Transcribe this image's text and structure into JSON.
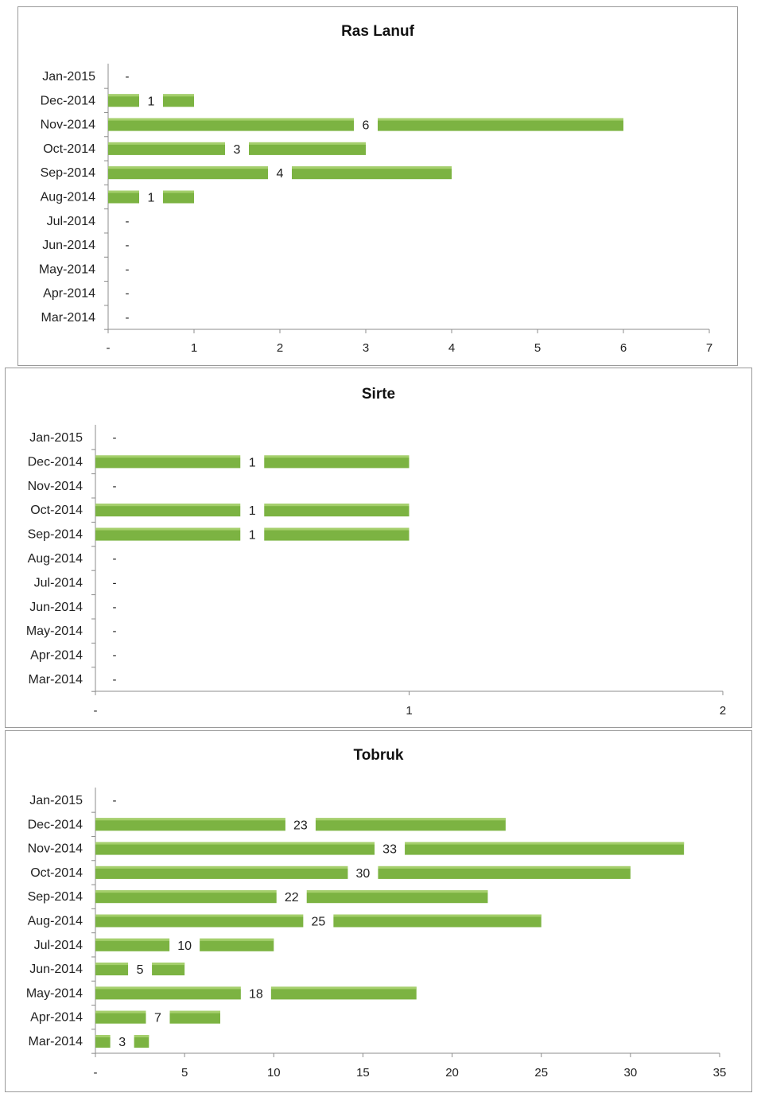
{
  "chart_data": [
    {
      "type": "bar",
      "orientation": "horizontal",
      "title": "Ras Lanuf",
      "categories": [
        "Jan-2015",
        "Dec-2014",
        "Nov-2014",
        "Oct-2014",
        "Sep-2014",
        "Aug-2014",
        "Jul-2014",
        "Jun-2014",
        "May-2014",
        "Apr-2014",
        "Mar-2014"
      ],
      "values": [
        0,
        1,
        6,
        3,
        4,
        1,
        0,
        0,
        0,
        0,
        0
      ],
      "value_labels": [
        "-",
        "1",
        "6",
        "3",
        "4",
        "1",
        "-",
        "-",
        "-",
        "-",
        "-"
      ],
      "xlim": [
        0,
        7
      ],
      "ticks": [
        0,
        1,
        2,
        3,
        4,
        5,
        6,
        7
      ],
      "tick_labels": [
        "-",
        "1",
        "2",
        "3",
        "4",
        "5",
        "6",
        "7"
      ],
      "bar_color": "#7cb342",
      "grid": false,
      "legend": "none"
    },
    {
      "type": "bar",
      "orientation": "horizontal",
      "title": "Sirte",
      "categories": [
        "Jan-2015",
        "Dec-2014",
        "Nov-2014",
        "Oct-2014",
        "Sep-2014",
        "Aug-2014",
        "Jul-2014",
        "Jun-2014",
        "May-2014",
        "Apr-2014",
        "Mar-2014"
      ],
      "values": [
        0,
        1,
        0,
        1,
        1,
        0,
        0,
        0,
        0,
        0,
        0
      ],
      "value_labels": [
        "-",
        "1",
        "-",
        "1",
        "1",
        "-",
        "-",
        "-",
        "-",
        "-",
        "-"
      ],
      "xlim": [
        0,
        2
      ],
      "ticks": [
        0,
        1,
        2
      ],
      "tick_labels": [
        "-",
        "1",
        "2"
      ],
      "bar_color": "#7cb342",
      "grid": false,
      "legend": "none"
    },
    {
      "type": "bar",
      "orientation": "horizontal",
      "title": "Tobruk",
      "categories": [
        "Jan-2015",
        "Dec-2014",
        "Nov-2014",
        "Oct-2014",
        "Sep-2014",
        "Aug-2014",
        "Jul-2014",
        "Jun-2014",
        "May-2014",
        "Apr-2014",
        "Mar-2014"
      ],
      "values": [
        0,
        23,
        33,
        30,
        22,
        25,
        10,
        5,
        18,
        7,
        3
      ],
      "value_labels": [
        "-",
        "23",
        "33",
        "30",
        "22",
        "25",
        "10",
        "5",
        "18",
        "7",
        "3"
      ],
      "xlim": [
        0,
        35
      ],
      "ticks": [
        0,
        5,
        10,
        15,
        20,
        25,
        30,
        35
      ],
      "tick_labels": [
        "-",
        "5",
        "10",
        "15",
        "20",
        "25",
        "30",
        "35"
      ],
      "bar_color": "#7cb342",
      "grid": false,
      "legend": "none"
    }
  ]
}
